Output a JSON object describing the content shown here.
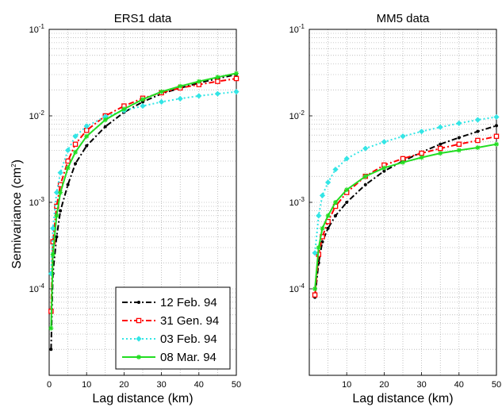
{
  "figure": {
    "ylabel": "Semivariance (cm",
    "ylabel_sup": "2",
    "ylabel_close": ")",
    "legend_entries": [
      "12 Feb. 94",
      "31 Gen. 94",
      "03 Feb. 94",
      "08 Mar. 94"
    ]
  },
  "chart_data": [
    {
      "type": "line",
      "title": "ERS1 data",
      "xlabel": "Lag distance (km)",
      "ylabel": "Semivariance (cm2)",
      "yscale": "log",
      "xlim": [
        0,
        50
      ],
      "ylim": [
        1e-05,
        0.1
      ],
      "x_ticks": [
        0,
        10,
        20,
        30,
        40,
        50
      ],
      "y_ticks": [
        {
          "base": "10",
          "exp": "-4"
        },
        {
          "base": "10",
          "exp": "-3"
        },
        {
          "base": "10",
          "exp": "-2"
        },
        {
          "base": "10",
          "exp": "-1"
        }
      ],
      "grid": true,
      "legend": "bottom-right",
      "series": [
        {
          "name": "12 Feb. 94",
          "color": "#000000",
          "marker": "dot",
          "dash": "dashdot",
          "x": [
            0.5,
            1,
            2,
            3,
            5,
            7,
            10,
            15,
            20,
            25,
            30,
            35,
            40,
            45,
            50
          ],
          "y": [
            2e-05,
            0.00015,
            0.0004,
            0.0008,
            0.0016,
            0.0028,
            0.0045,
            0.0075,
            0.011,
            0.0145,
            0.018,
            0.021,
            0.024,
            0.027,
            0.03
          ]
        },
        {
          "name": "31 Gen. 94",
          "color": "#ff0000",
          "marker": "square",
          "dash": "dashdot",
          "x": [
            0.5,
            1,
            2,
            3,
            5,
            7,
            10,
            15,
            20,
            25,
            30,
            35,
            40,
            45,
            50
          ],
          "y": [
            5.5e-05,
            0.00035,
            0.0009,
            0.0016,
            0.003,
            0.0047,
            0.0068,
            0.01,
            0.013,
            0.016,
            0.0185,
            0.021,
            0.023,
            0.025,
            0.027
          ]
        },
        {
          "name": "03 Feb. 94",
          "color": "#33e5e5",
          "marker": "diamond",
          "dash": "dot",
          "x": [
            0.5,
            1,
            2,
            3,
            5,
            7,
            10,
            15,
            20,
            25,
            30,
            35,
            40,
            45,
            50
          ],
          "y": [
            0.00015,
            0.0005,
            0.0013,
            0.0022,
            0.004,
            0.0058,
            0.0076,
            0.0098,
            0.0115,
            0.013,
            0.0145,
            0.0158,
            0.017,
            0.018,
            0.019
          ]
        },
        {
          "name": "08 Mar. 94",
          "color": "#22dd22",
          "marker": "star",
          "dash": "solid",
          "x": [
            0.5,
            1,
            2,
            3,
            5,
            7,
            10,
            15,
            20,
            25,
            30,
            35,
            40,
            45,
            50
          ],
          "y": [
            3.5e-05,
            0.00025,
            0.0007,
            0.0013,
            0.0025,
            0.0038,
            0.0058,
            0.009,
            0.012,
            0.0155,
            0.019,
            0.022,
            0.025,
            0.028,
            0.031
          ]
        }
      ]
    },
    {
      "type": "line",
      "title": "MM5 data",
      "xlabel": "Lag distance (km)",
      "yscale": "log",
      "xlim": [
        0,
        50
      ],
      "ylim": [
        1e-05,
        0.1
      ],
      "x_ticks": [
        10,
        20,
        30,
        40,
        50
      ],
      "y_ticks": [
        {
          "base": "10",
          "exp": "-4"
        },
        {
          "base": "10",
          "exp": "-3"
        },
        {
          "base": "10",
          "exp": "-2"
        },
        {
          "base": "10",
          "exp": "-1"
        }
      ],
      "grid": true,
      "series": [
        {
          "name": "12 Feb. 94",
          "color": "#000000",
          "marker": "dot",
          "dash": "dashdot",
          "x": [
            1.5,
            2.5,
            3.5,
            5,
            7,
            10,
            15,
            20,
            25,
            30,
            35,
            40,
            45,
            50
          ],
          "y": [
            8e-05,
            0.0002,
            0.00035,
            0.0005,
            0.0007,
            0.001,
            0.0016,
            0.0023,
            0.003,
            0.0038,
            0.0047,
            0.0056,
            0.0066,
            0.0077
          ]
        },
        {
          "name": "31 Gen. 94",
          "color": "#ff0000",
          "marker": "square",
          "dash": "dashdot",
          "x": [
            1.5,
            2.5,
            3.5,
            5,
            7,
            10,
            15,
            20,
            25,
            30,
            35,
            40,
            45,
            50
          ],
          "y": [
            8.5e-05,
            0.00025,
            0.0004,
            0.0006,
            0.0009,
            0.0013,
            0.002,
            0.0027,
            0.0032,
            0.0037,
            0.0042,
            0.0047,
            0.0052,
            0.0058
          ]
        },
        {
          "name": "03 Feb. 94",
          "color": "#33e5e5",
          "marker": "diamond",
          "dash": "dot",
          "x": [
            1.5,
            2.5,
            3.5,
            5,
            7,
            10,
            15,
            20,
            25,
            30,
            35,
            40,
            45,
            50
          ],
          "y": [
            0.00026,
            0.0007,
            0.0012,
            0.0017,
            0.0024,
            0.0032,
            0.0042,
            0.005,
            0.0058,
            0.0066,
            0.0074,
            0.0082,
            0.009,
            0.0097
          ]
        },
        {
          "name": "08 Mar. 94",
          "color": "#22dd22",
          "marker": "star",
          "dash": "solid",
          "x": [
            1.5,
            2.5,
            3.5,
            5,
            7,
            10,
            15,
            20,
            25,
            30,
            35,
            40,
            45,
            50
          ],
          "y": [
            0.0001,
            0.0003,
            0.0005,
            0.0007,
            0.001,
            0.0014,
            0.002,
            0.0025,
            0.0029,
            0.0033,
            0.0037,
            0.004,
            0.0043,
            0.0047
          ]
        }
      ]
    }
  ]
}
